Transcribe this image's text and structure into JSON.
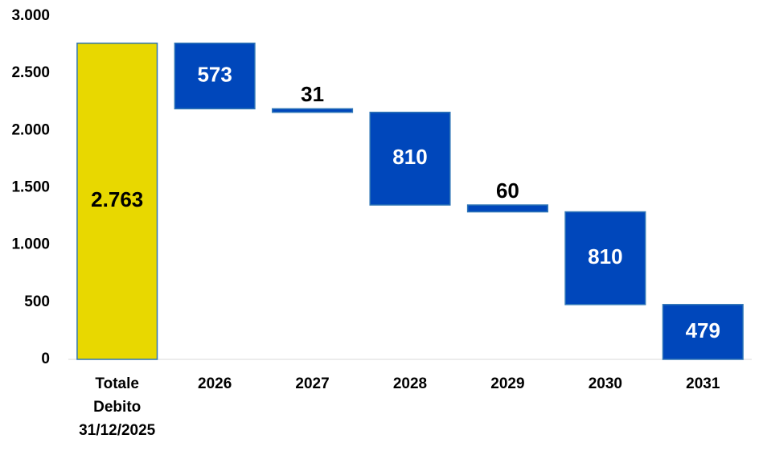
{
  "chart_data": {
    "type": "waterfall",
    "categories": [
      "Totale Debito 31/12/2025",
      "2026",
      "2027",
      "2028",
      "2029",
      "2030",
      "2031"
    ],
    "values": [
      2763,
      573,
      31,
      810,
      60,
      810,
      479
    ],
    "value_labels": [
      "2.763",
      "573",
      "31",
      "810",
      "60",
      "810",
      "479"
    ],
    "total_color": "#e8d800",
    "color": "#0047bb",
    "ylim": [
      0,
      3000
    ],
    "yticks": [
      0,
      500,
      {
        "value": 1000,
        "label": "1.000"
      },
      {
        "value": 1500,
        "label": "1.500"
      },
      {
        "value": 2000,
        "label": "2.000"
      },
      {
        "value": 2500,
        "label": "2.500"
      },
      {
        "value": 3000,
        "label": "3.000"
      }
    ],
    "grid": false
  }
}
